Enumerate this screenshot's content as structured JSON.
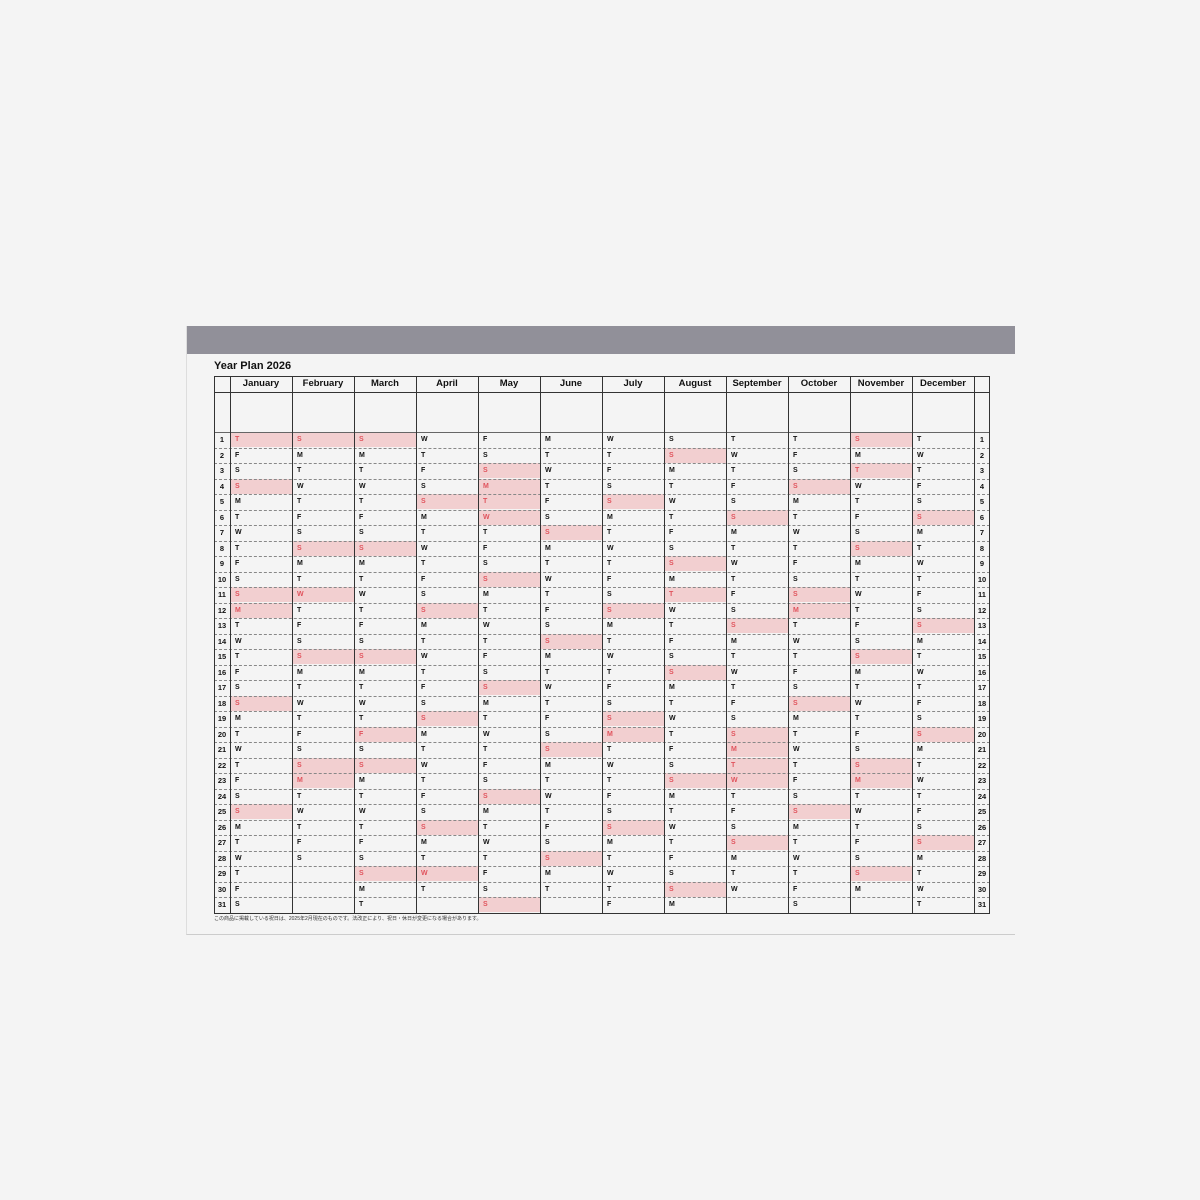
{
  "title": "Year Plan 2026",
  "months": [
    {
      "name": "January",
      "days": "TFSSMTWTFSSMTWTFSSMTWTFSSMTWTFS",
      "holidays": [
        1,
        4,
        11,
        12,
        18,
        25
      ]
    },
    {
      "name": "February",
      "days": "SMTWTFSSMTWTFSSMTWTFSSMTWTFS",
      "holidays": [
        1,
        8,
        11,
        15,
        22,
        23
      ]
    },
    {
      "name": "March",
      "days": "SMTWTFSSMTWTFSSMTWTFSSMTWTFSSMT",
      "holidays": [
        1,
        8,
        15,
        20,
        22,
        29
      ]
    },
    {
      "name": "April",
      "days": "WTFSSMTWTFSSMTWTFSSMTWTFSSMTWT",
      "holidays": [
        5,
        12,
        19,
        26,
        29
      ]
    },
    {
      "name": "May",
      "days": "FSSMTWTFSSMTWTFSSMTWTFSSMTWTFSS",
      "holidays": [
        3,
        4,
        5,
        6,
        10,
        17,
        24,
        31
      ]
    },
    {
      "name": "June",
      "days": "MTWTFSSMTWTFSSMTWTFSSMTWTFSSMT",
      "holidays": [
        7,
        14,
        21,
        28
      ]
    },
    {
      "name": "July",
      "days": "WTFSSMTWTFSSMTWTFSSMTWTFSSMTWTF",
      "holidays": [
        5,
        12,
        19,
        20,
        26
      ]
    },
    {
      "name": "August",
      "days": "SSMTWTFSSMTWTFSSMTWTFSSMTWTFSSM",
      "holidays": [
        2,
        9,
        11,
        16,
        23,
        30
      ]
    },
    {
      "name": "September",
      "days": "TWTFSSMTWTFSSMTWTFSSMTWTFSSMTW",
      "holidays": [
        6,
        13,
        20,
        21,
        22,
        23,
        27
      ]
    },
    {
      "name": "October",
      "days": "TFSSMTWTFSSMTWTFSSMTWTFSSMTWTFS",
      "holidays": [
        4,
        11,
        12,
        18,
        25
      ]
    },
    {
      "name": "November",
      "days": "SMTWTFSSMTWTFSSMTWTFSSMTWTFSSM",
      "holidays": [
        1,
        3,
        8,
        15,
        22,
        23,
        29
      ]
    },
    {
      "name": "December",
      "days": "TWTFSSMTWTFSSMTWTFSSMTWTFSSMTWT",
      "holidays": [
        6,
        13,
        20,
        27
      ]
    }
  ],
  "day_numbers": [
    1,
    2,
    3,
    4,
    5,
    6,
    7,
    8,
    9,
    10,
    11,
    12,
    13,
    14,
    15,
    16,
    17,
    18,
    19,
    20,
    21,
    22,
    23,
    24,
    25,
    26,
    27,
    28,
    29,
    30,
    31
  ],
  "footnote": "この商品に掲載している祝日は、2025年2月現在のものです。法改正により、祝日・休日が変更になる場合があります。",
  "colors": {
    "band": "#919099",
    "holiday_bg": "#f2cfd0",
    "holiday_text": "#e0505a"
  }
}
